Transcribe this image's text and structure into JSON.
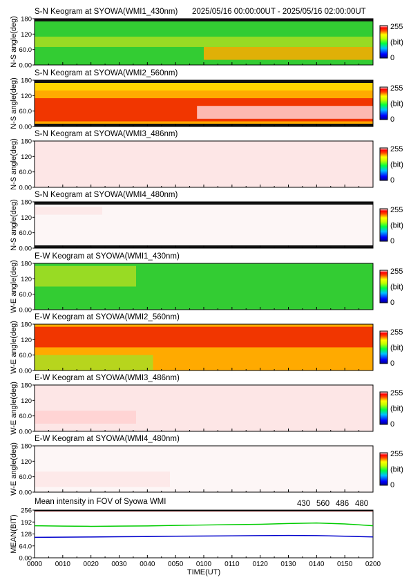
{
  "header": {
    "time_range": "2025/05/16 00:00:00UT - 2025/05/16 02:00:00UT"
  },
  "colorbar": {
    "max_label": "255",
    "unit_label": "(bit)",
    "min_label": "0"
  },
  "chart_data": [
    {
      "type": "heatmap",
      "title": "S-N Keogram at SYOWA(WMI1_430nm)",
      "ylabel": "N-S angle(deg)",
      "yticks": [
        "180",
        "120",
        "60.0",
        "0.00"
      ],
      "ylim": [
        0,
        180
      ],
      "base": "green",
      "bands": [
        {
          "y0": 20,
          "y1": 70,
          "t0": 0.5,
          "t1": 1.0,
          "color": "orange"
        },
        {
          "y0": 70,
          "y1": 110,
          "t0": 0,
          "t1": 1,
          "color": "yellowgreen"
        }
      ]
    },
    {
      "type": "heatmap",
      "title": "S-N Keogram at SYOWA(WMI2_560nm)",
      "ylabel": "N-S angle(deg)",
      "yticks": [
        "180",
        "120",
        "60.0",
        "0.00"
      ],
      "ylim": [
        0,
        180
      ],
      "base": "orange",
      "bands": [
        {
          "y0": 20,
          "y1": 110,
          "t0": 0,
          "t1": 1,
          "color": "red"
        },
        {
          "y0": 30,
          "y1": 80,
          "t0": 0.48,
          "t1": 1.0,
          "color": "pink"
        },
        {
          "y0": 140,
          "y1": 175,
          "t0": 0,
          "t1": 1,
          "color": "yellow"
        }
      ]
    },
    {
      "type": "heatmap",
      "title": "S-N Keogram at SYOWA(WMI3_486nm)",
      "ylabel": "N-S angle(deg)",
      "yticks": [
        "180",
        "120",
        "60.0",
        "0.00"
      ],
      "ylim": [
        0,
        180
      ],
      "base": "palepink",
      "bands": []
    },
    {
      "type": "heatmap",
      "title": "S-N Keogram at SYOWA(WMI4_480nm)",
      "ylabel": "N-S angle(deg)",
      "yticks": [
        "180",
        "120",
        "60.0",
        "0.00"
      ],
      "ylim": [
        0,
        180
      ],
      "base": "white",
      "bands": [
        {
          "y0": 130,
          "y1": 160,
          "t0": 0,
          "t1": 0.2,
          "color": "palepink"
        }
      ]
    },
    {
      "type": "heatmap",
      "title": "E-W Keogram at SYOWA(WMI1_430nm)",
      "ylabel": "W-E angle(deg)",
      "yticks": [
        "180",
        "120",
        "60.0",
        "0.00"
      ],
      "ylim": [
        0,
        180
      ],
      "base": "green",
      "bands": [
        {
          "y0": 90,
          "y1": 170,
          "t0": 0,
          "t1": 0.3,
          "color": "yellowgreen"
        }
      ]
    },
    {
      "type": "heatmap",
      "title": "E-W Keogram at SYOWA(WMI2_560nm)",
      "ylabel": "W-E angle(deg)",
      "yticks": [
        "180",
        "120",
        "60.0",
        "0.00"
      ],
      "ylim": [
        0,
        180
      ],
      "base": "orange",
      "bands": [
        {
          "y0": 90,
          "y1": 170,
          "t0": 0,
          "t1": 1,
          "color": "red"
        },
        {
          "y0": 0,
          "y1": 60,
          "t0": 0,
          "t1": 0.35,
          "color": "yellowgreen"
        }
      ]
    },
    {
      "type": "heatmap",
      "title": "E-W Keogram at SYOWA(WMI3_486nm)",
      "ylabel": "W-E angle(deg)",
      "yticks": [
        "180",
        "120",
        "60.0",
        "0.00"
      ],
      "ylim": [
        0,
        180
      ],
      "base": "palepink",
      "bands": [
        {
          "y0": 30,
          "y1": 80,
          "t0": 0,
          "t1": 0.3,
          "color": "pink"
        }
      ]
    },
    {
      "type": "heatmap",
      "title": "E-W Keogram at SYOWA(WMI4_480nm)",
      "ylabel": "W-E angle(deg)",
      "yticks": [
        "180",
        "120",
        "60.0",
        "0.00"
      ],
      "ylim": [
        0,
        180
      ],
      "base": "white",
      "bands": [
        {
          "y0": 20,
          "y1": 80,
          "t0": 0,
          "t1": 0.4,
          "color": "palepink"
        }
      ]
    },
    {
      "type": "line",
      "title": "Mean intensity in FOV of Syowa WMI",
      "ylabel": "MEAN(BIT)",
      "xlabel": "TIME(UT)",
      "yticks": [
        "256",
        "192",
        "128",
        "64.0",
        "0.00"
      ],
      "ylim": [
        0,
        256
      ],
      "x_ticks": [
        "0000",
        "0010",
        "0020",
        "0030",
        "0040",
        "0050",
        "0100",
        "0110",
        "0120",
        "0130",
        "0140",
        "0150",
        "0200"
      ],
      "series": [
        {
          "name": "430",
          "color": "#0000cc",
          "x": [
            0,
            10,
            20,
            30,
            40,
            50,
            60,
            70,
            80,
            90,
            100,
            110,
            120
          ],
          "values": [
            110,
            111,
            112,
            113,
            114,
            116,
            117,
            118,
            119,
            120,
            119,
            116,
            112
          ]
        },
        {
          "name": "560",
          "color": "#00cc00",
          "x": [
            0,
            10,
            20,
            30,
            40,
            50,
            60,
            70,
            80,
            90,
            100,
            110,
            120
          ],
          "values": [
            172,
            170,
            169,
            170,
            171,
            174,
            176,
            178,
            180,
            184,
            187,
            182,
            172
          ]
        },
        {
          "name": "486",
          "color": "#cc0000",
          "x": [
            0,
            10,
            20,
            30,
            40,
            50,
            60,
            70,
            80,
            90,
            100,
            110,
            120
          ],
          "values": [
            252,
            252,
            252,
            252,
            252,
            252,
            252,
            252,
            252,
            252,
            252,
            252,
            252
          ]
        },
        {
          "name": "480",
          "color": "#000000",
          "x": [
            0,
            10,
            20,
            30,
            40,
            50,
            60,
            70,
            80,
            90,
            100,
            110,
            120
          ],
          "values": [
            253,
            253,
            253,
            253,
            253,
            253,
            253,
            253,
            253,
            253,
            253,
            253,
            253
          ]
        }
      ]
    }
  ]
}
